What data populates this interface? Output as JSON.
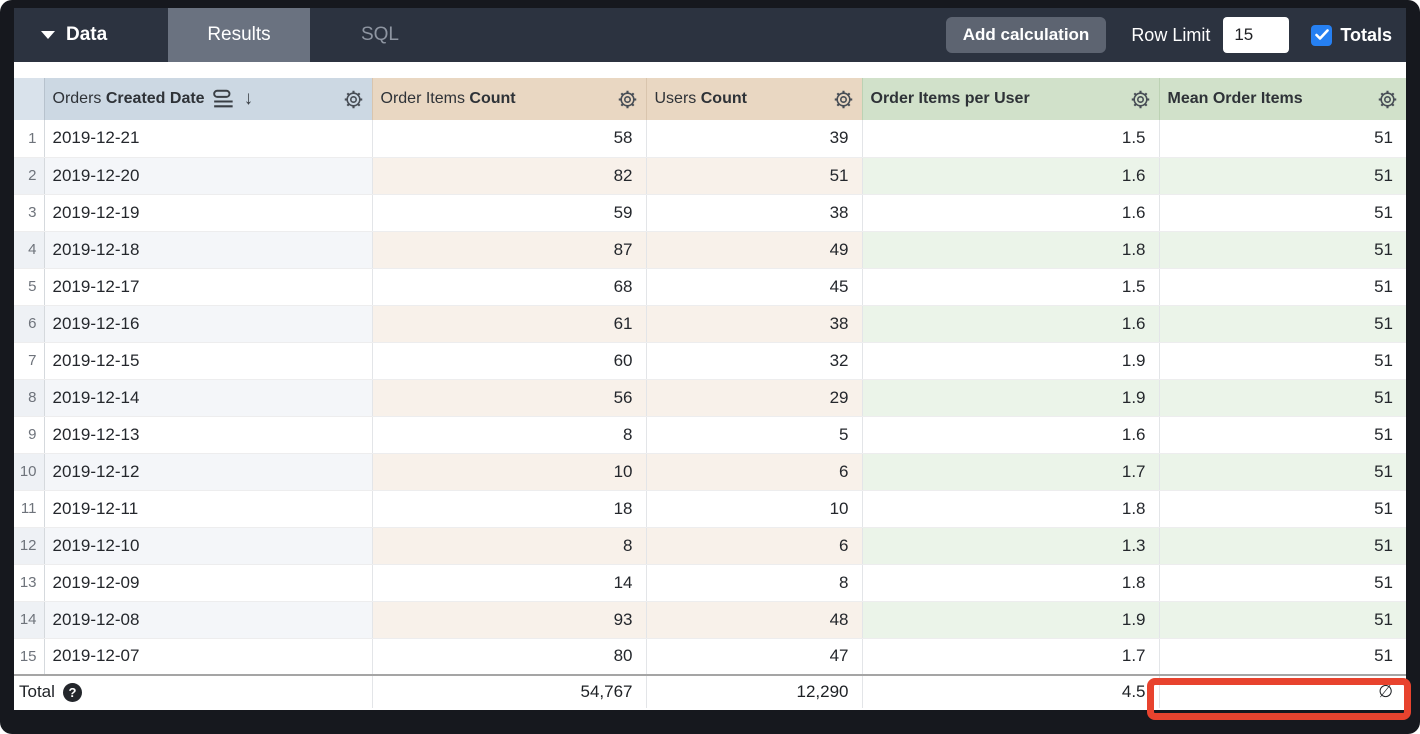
{
  "topbar": {
    "data_label": "Data",
    "tabs": [
      {
        "label": "Results",
        "active": true
      },
      {
        "label": "SQL",
        "active": false
      }
    ],
    "add_calculation_label": "Add calculation",
    "row_limit_label": "Row Limit",
    "row_limit_value": "15",
    "totals_label": "Totals",
    "totals_checked": true
  },
  "table": {
    "columns": [
      {
        "prefix": "Orders",
        "label": "Created Date",
        "type": "dimension",
        "sorted": "descending"
      },
      {
        "prefix": "Order Items",
        "label": "Count",
        "type": "measure"
      },
      {
        "prefix": "Users",
        "label": "Count",
        "type": "measure"
      },
      {
        "prefix": "",
        "label": "Order Items per User",
        "type": "table-calculation"
      },
      {
        "prefix": "",
        "label": "Mean Order Items",
        "type": "table-calculation"
      }
    ],
    "rows": [
      {
        "n": "1",
        "cells": [
          "2019-12-21",
          "58",
          "39",
          "1.5",
          "51"
        ]
      },
      {
        "n": "2",
        "cells": [
          "2019-12-20",
          "82",
          "51",
          "1.6",
          "51"
        ]
      },
      {
        "n": "3",
        "cells": [
          "2019-12-19",
          "59",
          "38",
          "1.6",
          "51"
        ]
      },
      {
        "n": "4",
        "cells": [
          "2019-12-18",
          "87",
          "49",
          "1.8",
          "51"
        ]
      },
      {
        "n": "5",
        "cells": [
          "2019-12-17",
          "68",
          "45",
          "1.5",
          "51"
        ]
      },
      {
        "n": "6",
        "cells": [
          "2019-12-16",
          "61",
          "38",
          "1.6",
          "51"
        ]
      },
      {
        "n": "7",
        "cells": [
          "2019-12-15",
          "60",
          "32",
          "1.9",
          "51"
        ]
      },
      {
        "n": "8",
        "cells": [
          "2019-12-14",
          "56",
          "29",
          "1.9",
          "51"
        ]
      },
      {
        "n": "9",
        "cells": [
          "2019-12-13",
          "8",
          "5",
          "1.6",
          "51"
        ]
      },
      {
        "n": "10",
        "cells": [
          "2019-12-12",
          "10",
          "6",
          "1.7",
          "51"
        ]
      },
      {
        "n": "11",
        "cells": [
          "2019-12-11",
          "18",
          "10",
          "1.8",
          "51"
        ]
      },
      {
        "n": "12",
        "cells": [
          "2019-12-10",
          "8",
          "6",
          "1.3",
          "51"
        ]
      },
      {
        "n": "13",
        "cells": [
          "2019-12-09",
          "14",
          "8",
          "1.8",
          "51"
        ]
      },
      {
        "n": "14",
        "cells": [
          "2019-12-08",
          "93",
          "48",
          "1.9",
          "51"
        ]
      },
      {
        "n": "15",
        "cells": [
          "2019-12-07",
          "80",
          "47",
          "1.7",
          "51"
        ]
      }
    ],
    "total": {
      "label": "Total",
      "order_items_count": "54,767",
      "users_count": "12,290",
      "order_items_per_user": "4.5",
      "mean_order_items": "∅"
    }
  },
  "annotation": {
    "highlighted_cell": "mean-order-items-total",
    "color": "#e8432e"
  },
  "colors": {
    "topbar_bg": "#2c3340",
    "active_tab_bg": "#6a7280",
    "dimension_header_bg": "#ccd8e3",
    "measure_header_bg": "#e9d7c2",
    "calc_header_bg": "#d1e1ca",
    "checkbox_blue": "#2680f2",
    "highlight_red": "#e8432e"
  }
}
